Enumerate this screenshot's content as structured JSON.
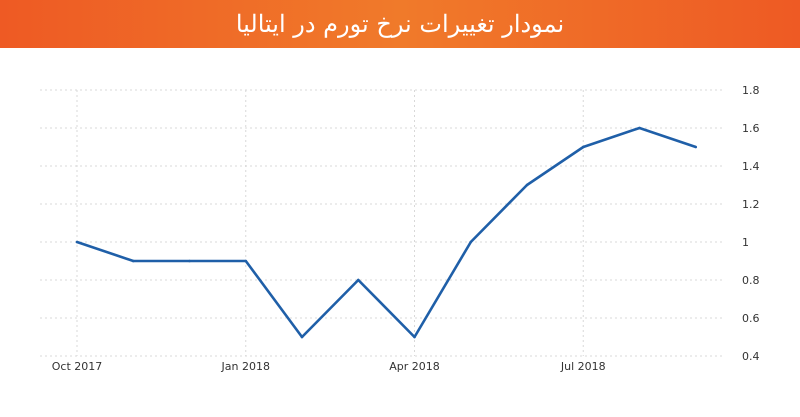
{
  "header": {
    "title": "نمودار تغییرات نرخ تورم در ایتالیا",
    "background_color": "#ee5a24"
  },
  "chart_data": {
    "type": "line",
    "x": [
      "Oct 2017",
      "Nov 2017",
      "Dec 2017",
      "Jan 2018",
      "Feb 2018",
      "Mar 2018",
      "Apr 2018",
      "May 2018",
      "Jun 2018",
      "Jul 2018",
      "Aug 2018",
      "Sep 2018"
    ],
    "series": [
      {
        "values": [
          1.0,
          0.9,
          0.9,
          0.9,
          0.5,
          0.8,
          0.5,
          1.0,
          1.3,
          1.5,
          1.6,
          1.5
        ],
        "color": "#1f5fa8"
      }
    ],
    "x_tick_labels": [
      "Oct 2017",
      "Jan 2018",
      "Apr 2018",
      "Jul 2018"
    ],
    "y_tick_labels": [
      "0.4",
      "0.6",
      "0.8",
      "1",
      "1.2",
      "1.4",
      "1.6",
      "1.8"
    ],
    "ylim": [
      0.4,
      1.8
    ],
    "y_axis_side": "right",
    "grid": true,
    "title": "",
    "xlabel": "",
    "ylabel": ""
  }
}
